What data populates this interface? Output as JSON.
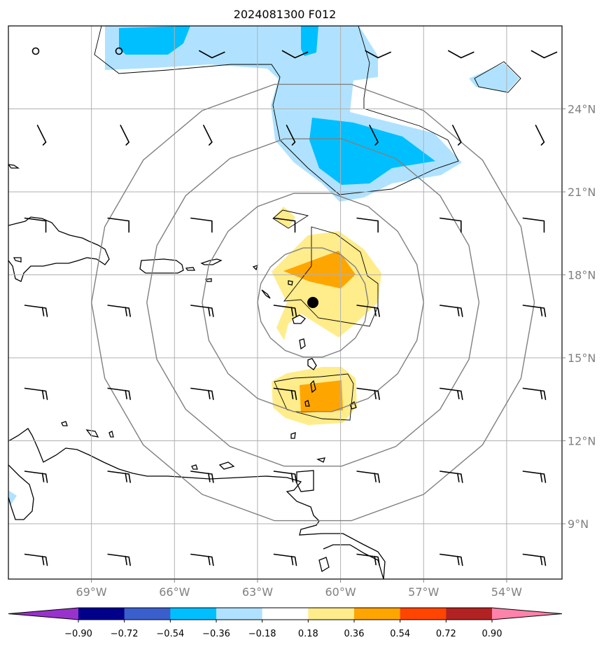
{
  "chart_data": {
    "type": "heatmap",
    "title": "2024081300 F012",
    "x_tick_labels": [
      "69°W",
      "66°W",
      "63°W",
      "60°W",
      "57°W",
      "54°W"
    ],
    "y_tick_labels": [
      "24°N",
      "21°N",
      "18°N",
      "15°N",
      "12°N",
      "9°N"
    ],
    "x_ticks_lon": [
      -69,
      -66,
      -63,
      -60,
      -57,
      -54
    ],
    "y_ticks_lat": [
      24,
      21,
      18,
      15,
      12,
      9
    ],
    "xlim": [
      -72,
      -52
    ],
    "ylim": [
      7,
      27
    ],
    "grid": true,
    "colorbar": {
      "orientation": "horizontal",
      "levels": [
        -0.9,
        -0.72,
        -0.54,
        -0.36,
        -0.18,
        0.18,
        0.36,
        0.54,
        0.72,
        0.9
      ],
      "labels": [
        "−0.90",
        "−0.72",
        "−0.54",
        "−0.36",
        "−0.18",
        "0.18",
        "0.36",
        "0.54",
        "0.72",
        "0.90"
      ],
      "colors": [
        "#9932cc",
        "#00008b",
        "#3a5fcd",
        "#00bfff",
        "#b0e2ff",
        "#ffffff",
        "#ffec8b",
        "#ffa500",
        "#ff4500",
        "#b22222",
        "#ff82ab"
      ],
      "extend": "both"
    },
    "range_rings_deg": [
      2,
      4,
      6,
      8
    ],
    "center_marker": {
      "lon": -61.0,
      "lat": 17.0
    }
  }
}
